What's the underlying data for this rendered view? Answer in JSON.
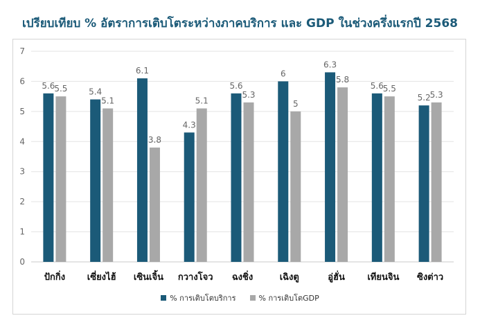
{
  "chart_data": {
    "type": "bar",
    "title": "เปรียบเทียบ % อัตราการเติบโตระหว่างภาคบริการ และ GDP ในช่วงครึ่งแรกปี 2568",
    "categories": [
      "ปักกิ่ง",
      "เซี่ยงไฮ้",
      "เซินเจิ้น",
      "กวางโจว",
      "ฉงชิ่ง",
      "เฉิงตู",
      "อู่ฮั่น",
      "เทียนจิน",
      "ซิงต่าว"
    ],
    "series": [
      {
        "name": "% การเติบโตบริการ",
        "values": [
          5.6,
          5.4,
          6.1,
          4.3,
          5.6,
          6,
          6.3,
          5.6,
          5.2
        ],
        "labels": [
          "5.6",
          "5.4",
          "6.1",
          "4.3",
          "5.6",
          "6",
          "6.3",
          "5.6",
          "5.2"
        ],
        "color": "#1b5a78"
      },
      {
        "name": "% การเติบโตGDP",
        "values": [
          5.5,
          5.1,
          3.8,
          5.1,
          5.3,
          5,
          5.8,
          5.5,
          5.3
        ],
        "labels": [
          "5.5",
          "5.1",
          "3.8",
          "5.1",
          "5.3",
          "5",
          "5.8",
          "5.5",
          "5.3"
        ],
        "color": "#a8a8a8"
      }
    ],
    "ylim": [
      0,
      7
    ],
    "yticks": [
      "0",
      "1",
      "2",
      "3",
      "4",
      "5",
      "6",
      "7"
    ],
    "grid": true,
    "legend": "bottom"
  }
}
